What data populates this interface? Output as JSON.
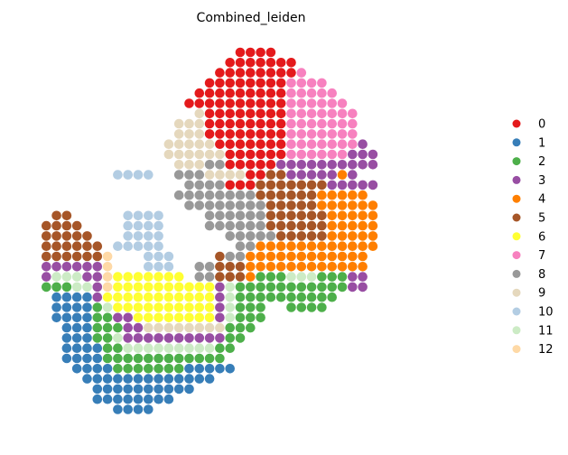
{
  "chart_data": {
    "type": "scatter",
    "title": "Combined_leiden",
    "xlabel": "",
    "ylabel": "",
    "grid": false,
    "legend_placement": "right",
    "spot_spacing": 1,
    "legend": [
      {
        "label": "0",
        "color": "#e41a1c"
      },
      {
        "label": "1",
        "color": "#377eb8"
      },
      {
        "label": "2",
        "color": "#4daf4a"
      },
      {
        "label": "3",
        "color": "#984ea3"
      },
      {
        "label": "4",
        "color": "#ff7f00"
      },
      {
        "label": "5",
        "color": "#a65628"
      },
      {
        "label": "6",
        "color": "#ffff33"
      },
      {
        "label": "7",
        "color": "#f781bf"
      },
      {
        "label": "8",
        "color": "#999999"
      },
      {
        "label": "9",
        "color": "#e5d8bd"
      },
      {
        "label": "10",
        "color": "#b3cde3"
      },
      {
        "label": "11",
        "color": "#ccebc5"
      },
      {
        "label": "12",
        "color": "#fed9a6"
      }
    ],
    "rows": [
      {
        "y": 0,
        "spans": [
          [
            20,
            23,
            "0"
          ]
        ]
      },
      {
        "y": 1,
        "spans": [
          [
            19,
            25,
            "0"
          ]
        ]
      },
      {
        "y": 2,
        "spans": [
          [
            18,
            25,
            "0"
          ],
          [
            26,
            26,
            "7"
          ]
        ]
      },
      {
        "y": 3,
        "spans": [
          [
            17,
            24,
            "0"
          ],
          [
            25,
            28,
            "7"
          ]
        ]
      },
      {
        "y": 4,
        "spans": [
          [
            16,
            24,
            "0"
          ],
          [
            25,
            29,
            "7"
          ]
        ]
      },
      {
        "y": 5,
        "spans": [
          [
            15,
            24,
            "0"
          ],
          [
            25,
            30,
            "7"
          ]
        ]
      },
      {
        "y": 6,
        "spans": [
          [
            16,
            16,
            "9"
          ],
          [
            17,
            24,
            "0"
          ],
          [
            25,
            31,
            "7"
          ]
        ]
      },
      {
        "y": 7,
        "spans": [
          [
            14,
            16,
            "9"
          ],
          [
            17,
            24,
            "0"
          ],
          [
            25,
            31,
            "7"
          ]
        ]
      },
      {
        "y": 8,
        "spans": [
          [
            14,
            16,
            "9"
          ],
          [
            17,
            24,
            "0"
          ],
          [
            25,
            31,
            "7"
          ]
        ]
      },
      {
        "y": 9,
        "spans": [
          [
            13,
            17,
            "9"
          ],
          [
            18,
            24,
            "0"
          ],
          [
            25,
            31,
            "7"
          ],
          [
            32,
            32,
            "3"
          ]
        ]
      },
      {
        "y": 10,
        "spans": [
          [
            13,
            18,
            "9"
          ],
          [
            19,
            24,
            "0"
          ],
          [
            25,
            30,
            "7"
          ],
          [
            31,
            33,
            "3"
          ]
        ]
      },
      {
        "y": 11,
        "spans": [
          [
            14,
            16,
            "9"
          ],
          [
            17,
            18,
            "8"
          ],
          [
            19,
            23,
            "0"
          ],
          [
            24,
            33,
            "3"
          ]
        ]
      },
      {
        "y": 12,
        "spans": [
          [
            8,
            11,
            "10"
          ],
          [
            14,
            16,
            "8"
          ],
          [
            17,
            20,
            "9"
          ],
          [
            21,
            22,
            "0"
          ],
          [
            23,
            24,
            "5"
          ],
          [
            25,
            29,
            "3"
          ],
          [
            30,
            30,
            "4"
          ],
          [
            31,
            31,
            "3"
          ]
        ]
      },
      {
        "y": 13,
        "spans": [
          [
            15,
            18,
            "8"
          ],
          [
            19,
            21,
            "0"
          ],
          [
            22,
            28,
            "5"
          ],
          [
            29,
            33,
            "3"
          ]
        ]
      },
      {
        "y": 14,
        "spans": [
          [
            14,
            21,
            "8"
          ],
          [
            22,
            27,
            "5"
          ],
          [
            28,
            32,
            "4"
          ]
        ]
      },
      {
        "y": 15,
        "spans": [
          [
            15,
            22,
            "8"
          ],
          [
            23,
            27,
            "5"
          ],
          [
            28,
            33,
            "4"
          ]
        ]
      },
      {
        "y": 16,
        "spans": [
          [
            2,
            3,
            "5"
          ],
          [
            9,
            12,
            "10"
          ],
          [
            17,
            22,
            "8"
          ],
          [
            23,
            28,
            "5"
          ],
          [
            29,
            33,
            "4"
          ]
        ]
      },
      {
        "y": 17,
        "spans": [
          [
            1,
            4,
            "5"
          ],
          [
            9,
            12,
            "10"
          ],
          [
            17,
            22,
            "8"
          ],
          [
            23,
            28,
            "5"
          ],
          [
            29,
            33,
            "4"
          ]
        ]
      },
      {
        "y": 18,
        "spans": [
          [
            1,
            5,
            "5"
          ],
          [
            9,
            12,
            "10"
          ],
          [
            19,
            23,
            "8"
          ],
          [
            24,
            28,
            "5"
          ],
          [
            29,
            33,
            "4"
          ]
        ]
      },
      {
        "y": 19,
        "spans": [
          [
            1,
            6,
            "5"
          ],
          [
            8,
            10,
            "10"
          ],
          [
            11,
            12,
            "10"
          ],
          [
            20,
            21,
            "8"
          ],
          [
            22,
            33,
            "4"
          ]
        ]
      },
      {
        "y": 20,
        "spans": [
          [
            1,
            6,
            "5"
          ],
          [
            7,
            7,
            "12"
          ],
          [
            11,
            13,
            "10"
          ],
          [
            18,
            18,
            "5"
          ],
          [
            19,
            20,
            "8"
          ],
          [
            21,
            32,
            "4"
          ]
        ]
      },
      {
        "y": 21,
        "spans": [
          [
            1,
            6,
            "3"
          ],
          [
            7,
            7,
            "12"
          ],
          [
            11,
            13,
            "10"
          ],
          [
            16,
            17,
            "8"
          ],
          [
            18,
            20,
            "5"
          ],
          [
            21,
            32,
            "4"
          ]
        ]
      },
      {
        "y": 22,
        "spans": [
          [
            1,
            1,
            "3"
          ],
          [
            2,
            4,
            "11"
          ],
          [
            5,
            6,
            "3"
          ],
          [
            7,
            7,
            "12"
          ],
          [
            8,
            14,
            "6"
          ],
          [
            16,
            17,
            "8"
          ],
          [
            18,
            20,
            "5"
          ],
          [
            21,
            21,
            "4"
          ],
          [
            22,
            24,
            "2"
          ],
          [
            25,
            27,
            "11"
          ],
          [
            28,
            30,
            "2"
          ],
          [
            31,
            32,
            "3"
          ]
        ]
      },
      {
        "y": 23,
        "spans": [
          [
            1,
            3,
            "2"
          ],
          [
            4,
            5,
            "11"
          ],
          [
            6,
            6,
            "3"
          ],
          [
            7,
            7,
            "12"
          ],
          [
            8,
            17,
            "6"
          ],
          [
            18,
            18,
            "3"
          ],
          [
            19,
            19,
            "11"
          ],
          [
            20,
            26,
            "2"
          ],
          [
            27,
            30,
            "2"
          ],
          [
            31,
            32,
            "3"
          ]
        ]
      },
      {
        "y": 24,
        "spans": [
          [
            2,
            5,
            "1"
          ],
          [
            6,
            6,
            "3"
          ],
          [
            7,
            17,
            "6"
          ],
          [
            18,
            18,
            "3"
          ],
          [
            19,
            19,
            "11"
          ],
          [
            20,
            29,
            "2"
          ]
        ]
      },
      {
        "y": 25,
        "spans": [
          [
            2,
            5,
            "1"
          ],
          [
            6,
            6,
            "2"
          ],
          [
            7,
            7,
            "11"
          ],
          [
            8,
            17,
            "6"
          ],
          [
            18,
            18,
            "3"
          ],
          [
            19,
            19,
            "11"
          ],
          [
            20,
            22,
            "2"
          ],
          [
            25,
            28,
            "2"
          ]
        ]
      },
      {
        "y": 26,
        "spans": [
          [
            2,
            5,
            "1"
          ],
          [
            6,
            7,
            "2"
          ],
          [
            8,
            9,
            "3"
          ],
          [
            10,
            17,
            "6"
          ],
          [
            18,
            18,
            "3"
          ],
          [
            19,
            19,
            "11"
          ],
          [
            20,
            22,
            "2"
          ]
        ]
      },
      {
        "y": 27,
        "spans": [
          [
            3,
            5,
            "1"
          ],
          [
            6,
            8,
            "2"
          ],
          [
            9,
            10,
            "3"
          ],
          [
            11,
            18,
            "9"
          ],
          [
            19,
            21,
            "2"
          ]
        ]
      },
      {
        "y": 28,
        "spans": [
          [
            3,
            5,
            "1"
          ],
          [
            6,
            7,
            "2"
          ],
          [
            8,
            8,
            "11"
          ],
          [
            9,
            18,
            "3"
          ],
          [
            19,
            20,
            "2"
          ]
        ]
      },
      {
        "y": 29,
        "spans": [
          [
            3,
            6,
            "1"
          ],
          [
            7,
            8,
            "2"
          ],
          [
            9,
            17,
            "11"
          ],
          [
            18,
            19,
            "2"
          ]
        ]
      },
      {
        "y": 30,
        "spans": [
          [
            3,
            6,
            "1"
          ],
          [
            7,
            16,
            "2"
          ],
          [
            17,
            18,
            "2"
          ]
        ]
      },
      {
        "y": 31,
        "spans": [
          [
            4,
            7,
            "1"
          ],
          [
            8,
            9,
            "2"
          ],
          [
            10,
            14,
            "2"
          ],
          [
            15,
            19,
            "1"
          ]
        ]
      },
      {
        "y": 32,
        "spans": [
          [
            5,
            17,
            "1"
          ]
        ]
      },
      {
        "y": 33,
        "spans": [
          [
            6,
            15,
            "1"
          ]
        ]
      },
      {
        "y": 34,
        "spans": [
          [
            6,
            13,
            "1"
          ]
        ]
      },
      {
        "y": 35,
        "spans": [
          [
            8,
            11,
            "1"
          ]
        ]
      }
    ]
  }
}
